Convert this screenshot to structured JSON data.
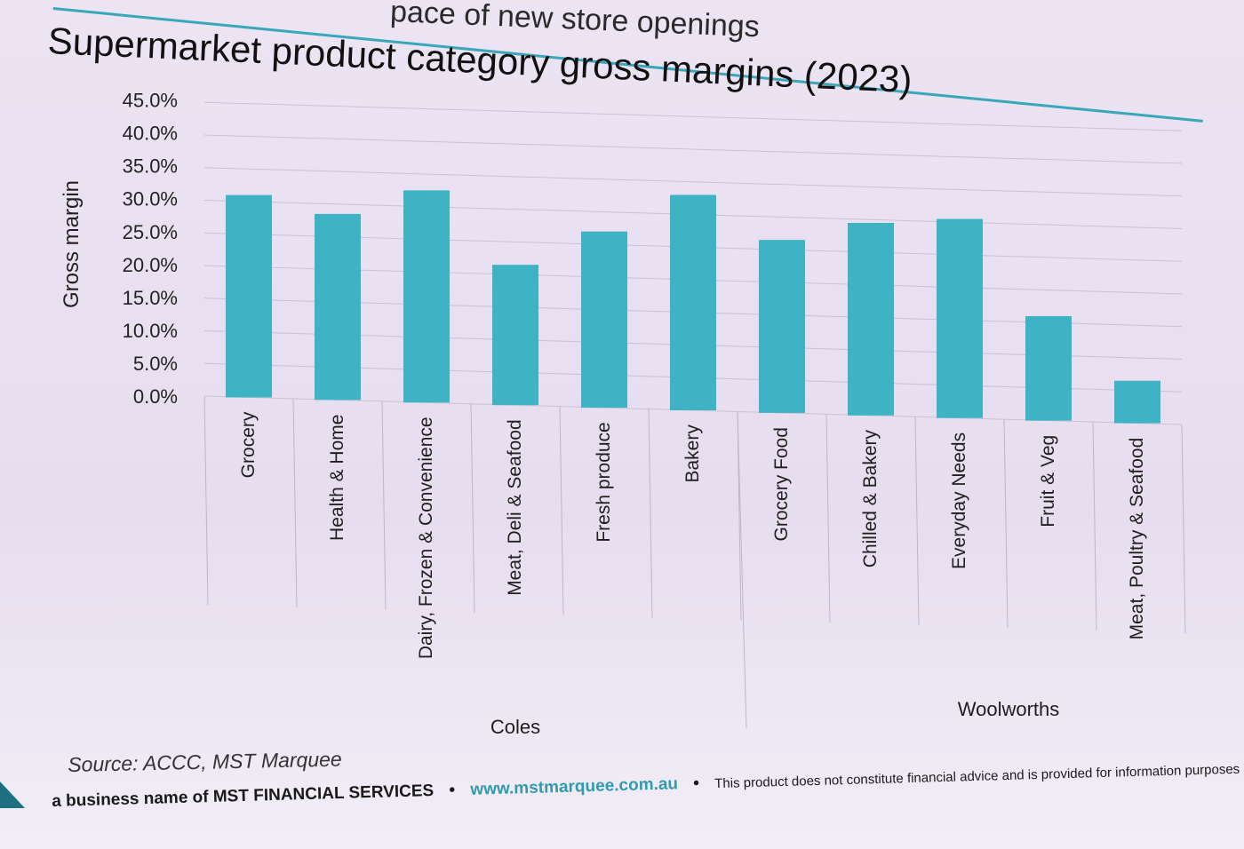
{
  "header": {
    "partial_heading": "pace of new store openings"
  },
  "chart_data": {
    "type": "bar",
    "title": "Supermarket product category gross margins (2023)",
    "ylabel": "Gross margin",
    "xlabel": "",
    "ylim": [
      0,
      45
    ],
    "yticks": [
      "0.0%",
      "5.0%",
      "10.0%",
      "15.0%",
      "20.0%",
      "25.0%",
      "30.0%",
      "35.0%",
      "40.0%",
      "45.0%"
    ],
    "grid": true,
    "bar_color": "#3db3c4",
    "categories": [
      "Grocery",
      "Health & Home",
      "Dairy, Frozen & Convenience",
      "Meat, Deli & Seafood",
      "Fresh produce",
      "Bakery",
      "Grocery Food",
      "Chilled & Bakery",
      "Everyday Needs",
      "Fruit & Veg",
      "Meat, Poultry & Seafood"
    ],
    "values": [
      31,
      28.5,
      32.5,
      21.5,
      27,
      33,
      26.5,
      29.5,
      30.5,
      16,
      6.5
    ],
    "groups": [
      {
        "name": "Coles",
        "categories": [
          "Grocery",
          "Health & Home",
          "Dairy, Frozen & Convenience",
          "Meat, Deli & Seafood",
          "Fresh produce",
          "Bakery"
        ]
      },
      {
        "name": "Woolworths",
        "categories": [
          "Grocery Food",
          "Chilled & Bakery",
          "Everyday Needs",
          "Fruit & Veg",
          "Meat, Poultry & Seafood"
        ]
      }
    ]
  },
  "source": "Source: ACCC, MST Marquee",
  "footer": {
    "business": "a business name of MST FINANCIAL SERVICES",
    "url": "www.mstmarquee.com.au",
    "disclaimer": "This product does not constitute financial advice and is provided for information purposes only.",
    "separator": "•"
  }
}
